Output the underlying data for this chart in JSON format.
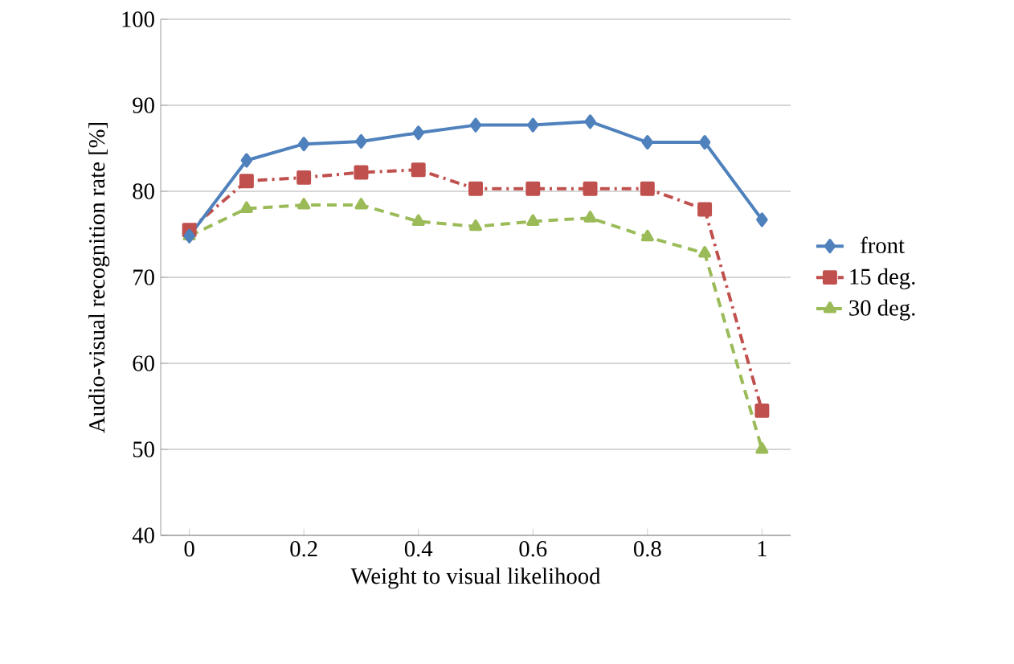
{
  "chart_data": {
    "type": "line",
    "xlabel": "Weight to visual likelihood",
    "ylabel": "Audio-visual recognition rate [%]",
    "x": [
      0,
      0.1,
      0.2,
      0.3,
      0.4,
      0.5,
      0.6,
      0.7,
      0.8,
      0.9,
      1
    ],
    "series": [
      {
        "name": "front",
        "color": "#4f81bd",
        "marker": "diamond",
        "line_style": "solid",
        "values": [
          74.8,
          83.6,
          85.5,
          85.8,
          86.8,
          87.7,
          87.7,
          88.1,
          85.7,
          85.7,
          76.7
        ]
      },
      {
        "name": "15 deg.",
        "color": "#c0504d",
        "marker": "square",
        "line_style": "dashdot",
        "values": [
          75.5,
          81.2,
          81.6,
          82.2,
          82.5,
          80.3,
          80.3,
          80.3,
          80.3,
          77.9,
          54.5
        ]
      },
      {
        "name": "30 deg.",
        "color": "#9bbb59",
        "marker": "triangle",
        "line_style": "dashed",
        "values": [
          74.8,
          78.0,
          78.4,
          78.4,
          76.5,
          75.9,
          76.5,
          76.9,
          74.7,
          72.8,
          50.0
        ]
      }
    ],
    "xlim": [
      -0.05,
      1.05
    ],
    "xticks": [
      0,
      0.2,
      0.4,
      0.6,
      0.8,
      1
    ],
    "ylim": [
      40,
      100
    ],
    "yticks": [
      40,
      50,
      60,
      70,
      80,
      90,
      100
    ],
    "grid": "y",
    "legend": "right"
  }
}
